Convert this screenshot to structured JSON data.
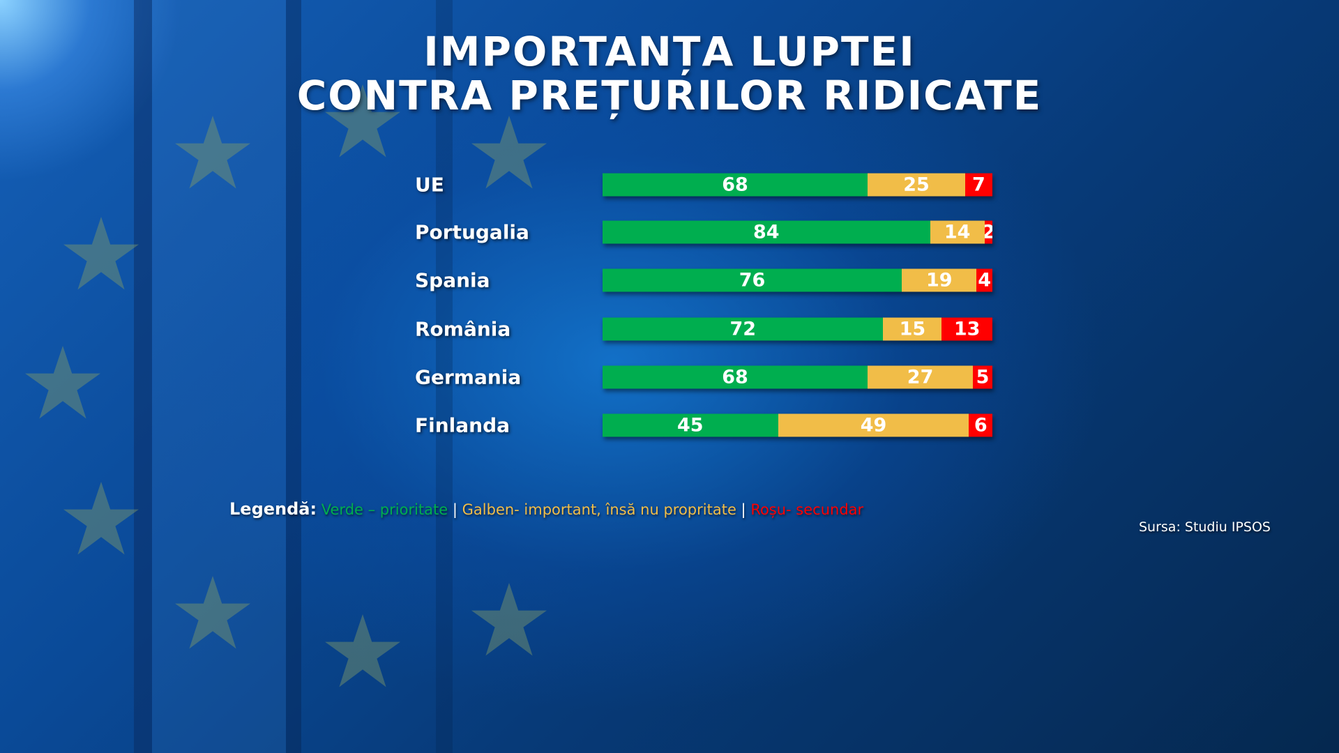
{
  "title": {
    "line1": "IMPORTANȚA LUPTEI",
    "line2": "CONTRA PREȚURILOR RIDICATE"
  },
  "colors": {
    "green": "#00ae4f",
    "yellow": "#f1bd48",
    "red": "#ff0000"
  },
  "chart_data": {
    "type": "bar",
    "stacked": true,
    "orientation": "horizontal",
    "title": "IMPORTANȚA LUPTEI CONTRA PREȚURILOR RIDICATE",
    "categories": [
      "UE",
      "Portugalia",
      "Spania",
      "România",
      "Germania",
      "Finlanda"
    ],
    "series": [
      {
        "name": "Verde – prioritate",
        "color": "#00ae4f",
        "values": [
          68,
          84,
          76,
          72,
          68,
          45
        ]
      },
      {
        "name": "Galben- important, însă nu propritate",
        "color": "#f1bd48",
        "values": [
          25,
          14,
          19,
          15,
          27,
          49
        ]
      },
      {
        "name": "Roșu- secundar",
        "color": "#ff0000",
        "values": [
          7,
          2,
          4,
          13,
          5,
          6
        ]
      }
    ],
    "xlim": [
      0,
      100
    ]
  },
  "legend": {
    "label": "Legendă:",
    "green": "Verde – prioritate",
    "sep": "|",
    "yellow": "Galben- important, însă nu propritate",
    "red": "Roșu- secundar"
  },
  "source": "Sursa: Studiu IPSOS"
}
